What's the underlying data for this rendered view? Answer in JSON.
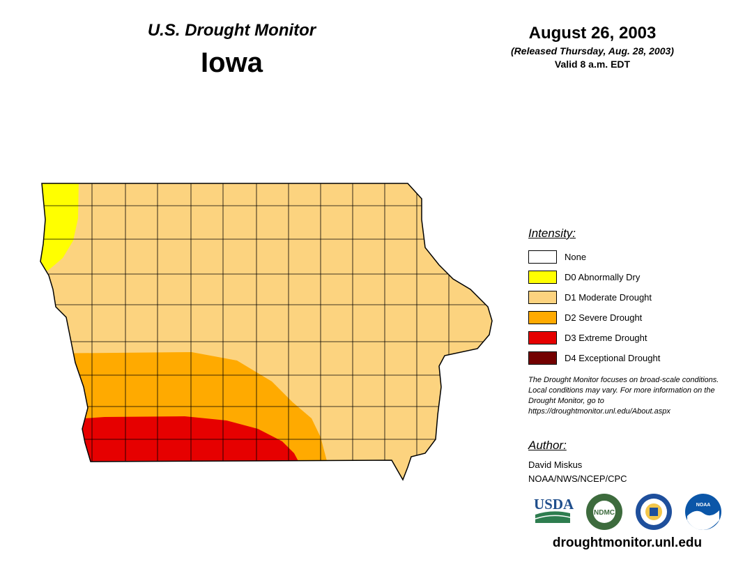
{
  "header": {
    "title": "U.S. Drought Monitor",
    "state": "Iowa",
    "date": "August 26, 2003",
    "released": "(Released Thursday, Aug. 28, 2003)",
    "valid": "Valid 8 a.m. EDT"
  },
  "legend": {
    "title": "Intensity:",
    "items": [
      {
        "label": "None",
        "color": "#ffffff"
      },
      {
        "label": "D0 Abnormally Dry",
        "color": "#ffff00"
      },
      {
        "label": "D1 Moderate Drought",
        "color": "#fcd37f"
      },
      {
        "label": "D2 Severe Drought",
        "color": "#ffaa00"
      },
      {
        "label": "D3 Extreme Drought",
        "color": "#e60000"
      },
      {
        "label": "D4 Exceptional Drought",
        "color": "#730000"
      }
    ]
  },
  "map": {
    "region": "Iowa",
    "categories_present": [
      "D0",
      "D1",
      "D2",
      "D3"
    ]
  },
  "note": "The Drought Monitor focuses on broad-scale conditions. Local conditions may vary. For more information on the Drought Monitor, go to https://droughtmonitor.unl.edu/About.aspx",
  "author": {
    "title": "Author:",
    "name": "David Miskus",
    "org": "NOAA/NWS/NCEP/CPC"
  },
  "logos": [
    {
      "name": "USDA",
      "text": "USDA"
    },
    {
      "name": "NDMC",
      "text": "NDMC"
    },
    {
      "name": "Commerce",
      "text": ""
    },
    {
      "name": "NOAA",
      "text": "NOAA"
    }
  ],
  "site": "droughtmonitor.unl.edu"
}
